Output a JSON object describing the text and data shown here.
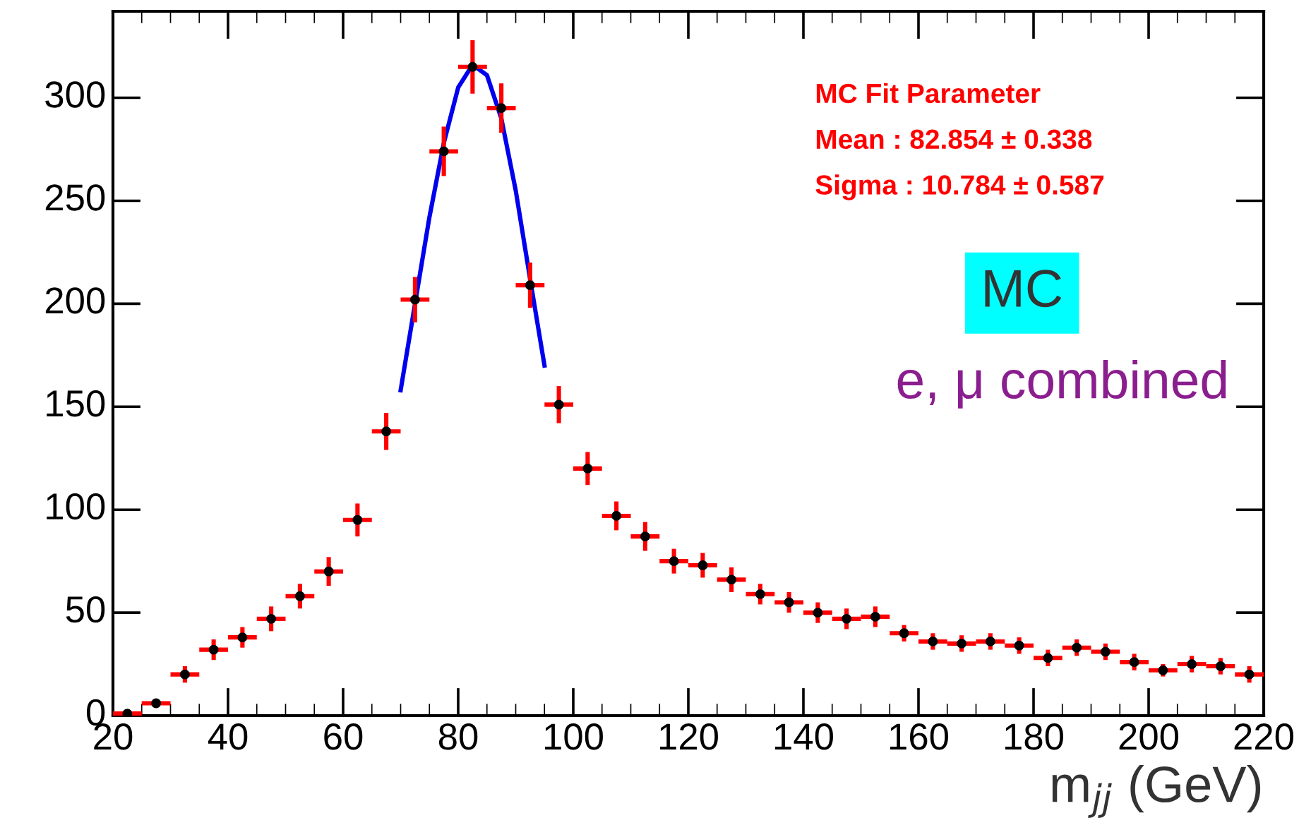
{
  "chart_data": {
    "type": "scatter",
    "xlabel": "m$_{jj}$ (GeV)",
    "xlim": [
      20,
      220
    ],
    "xticks": [
      20,
      40,
      60,
      80,
      100,
      120,
      140,
      160,
      180,
      200,
      220
    ],
    "ylim": [
      0,
      342
    ],
    "yticks": [
      0,
      50,
      100,
      150,
      200,
      250,
      300
    ],
    "grid": false,
    "legend": false,
    "series": [
      {
        "color": "#000000",
        "marker": "circle",
        "x": [
          22.5,
          27.5,
          32.5,
          37.5,
          42.5,
          47.5,
          52.5,
          57.5,
          62.5,
          67.5,
          72.5,
          77.5,
          82.5,
          87.5,
          92.5,
          97.5,
          102.5,
          107.5,
          112.5,
          117.5,
          122.5,
          127.5,
          132.5,
          137.5,
          142.5,
          147.5,
          152.5,
          157.5,
          162.5,
          167.5,
          172.5,
          177.5,
          182.5,
          187.5,
          192.5,
          197.5,
          202.5,
          207.5,
          212.5,
          217.5
        ],
        "values": [
          1,
          6,
          20,
          32,
          38,
          47,
          58,
          70,
          95,
          138,
          202,
          274,
          315,
          295,
          209,
          151,
          120,
          97,
          87,
          75,
          73,
          66,
          59,
          55,
          50,
          47,
          48,
          40,
          36,
          35,
          36,
          34,
          28,
          33,
          31,
          26,
          22,
          25,
          24,
          20
        ],
        "errors": [
          1,
          null,
          4,
          5,
          5,
          6,
          6,
          7,
          8,
          9,
          11,
          12,
          13,
          12,
          11,
          9,
          8,
          7,
          7,
          6,
          6,
          6,
          5,
          5,
          5,
          5,
          5,
          4,
          4,
          4,
          4,
          4,
          4,
          4,
          4,
          4,
          3,
          4,
          4,
          4
        ],
        "xerrors": [
          2.5,
          2.5,
          2.5,
          2.5,
          2.5,
          2.5,
          2.5,
          2.5,
          2.5,
          2.5,
          2.5,
          2.5,
          2.5,
          2.5,
          2.5,
          2.5,
          2.5,
          2.5,
          2.5,
          2.5,
          2.5,
          2.5,
          2.5,
          2.5,
          2.5,
          2.5,
          2.5,
          2.5,
          2.5,
          2.5,
          2.5,
          2.5,
          2.5,
          2.5,
          2.5,
          2.5,
          2.5,
          2.5,
          2.5,
          2.5
        ]
      },
      {
        "type": "line",
        "color": "#0000ee",
        "line_style": "solid",
        "x": [
          70,
          72.5,
          75,
          77.5,
          80,
          82.5,
          85,
          87.5,
          90,
          92.5,
          95
        ],
        "values": [
          158,
          200,
          242,
          278,
          305,
          316,
          311,
          290,
          255,
          212,
          170
        ]
      }
    ],
    "annotations": [
      "MC Fit Parameter",
      "Mean : 82.854 ± 0.338",
      "Sigma : 10.784 ± 0.587",
      "MC",
      "e, μ combined"
    ]
  }
}
